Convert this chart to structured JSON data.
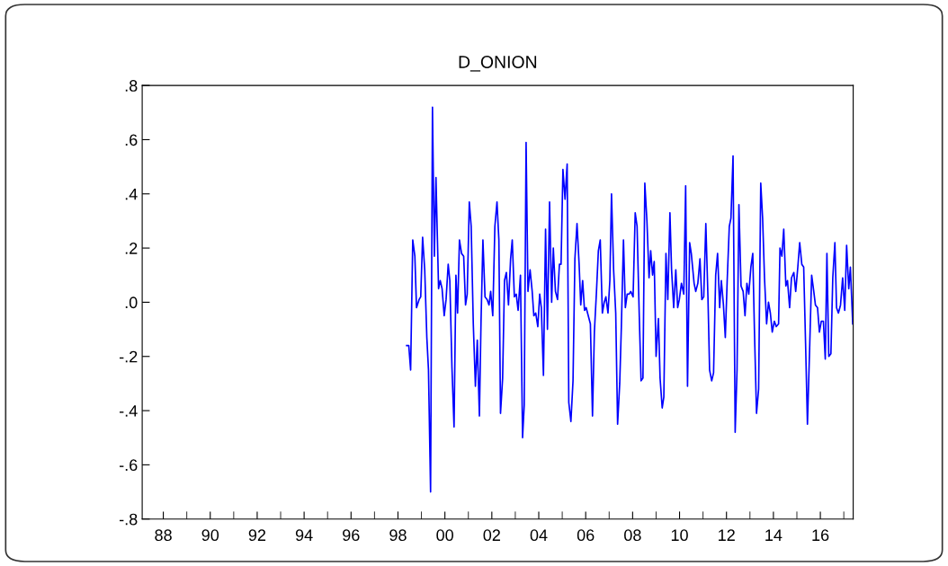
{
  "chart_data": {
    "type": "line",
    "title": "D_ONION",
    "x": [
      1998.37,
      1998.46,
      1998.54,
      1998.63,
      1998.72,
      1998.79,
      1998.9,
      1998.97,
      1999.05,
      1999.14,
      1999.23,
      1999.3,
      1999.39,
      1999.47,
      1999.55,
      1999.62,
      1999.73,
      1999.8,
      1999.88,
      1999.97,
      2000.05,
      2000.14,
      2000.21,
      2000.3,
      2000.39,
      2000.47,
      2000.54,
      2000.62,
      2000.71,
      2000.8,
      2000.88,
      2000.95,
      2001.04,
      2001.12,
      2001.21,
      2001.3,
      2001.38,
      2001.47,
      2001.54,
      2001.62,
      2001.71,
      2001.8,
      2001.88,
      2001.95,
      2002.04,
      2002.13,
      2002.22,
      2002.3,
      2002.37,
      2002.46,
      2002.54,
      2002.62,
      2002.71,
      2002.8,
      2002.87,
      2002.96,
      2003.04,
      2003.12,
      2003.22,
      2003.31,
      2003.38,
      2003.46,
      2003.54,
      2003.63,
      2003.72,
      2003.79,
      2003.87,
      2003.96,
      2004.04,
      2004.11,
      2004.2,
      2004.29,
      2004.37,
      2004.46,
      2004.55,
      2004.62,
      2004.71,
      2004.8,
      2004.88,
      2004.95,
      2005.03,
      2005.12,
      2005.21,
      2005.28,
      2005.37,
      2005.46,
      2005.54,
      2005.63,
      2005.72,
      2005.79,
      2005.87,
      2005.95,
      2006.02,
      2006.11,
      2006.2,
      2006.29,
      2006.37,
      2006.46,
      2006.54,
      2006.62,
      2006.71,
      2006.79,
      2006.86,
      2006.95,
      2007.03,
      2007.1,
      2007.19,
      2007.28,
      2007.36,
      2007.45,
      2007.52,
      2007.61,
      2007.69,
      2007.77,
      2007.85,
      2007.92,
      2008.02,
      2008.11,
      2008.19,
      2008.28,
      2008.36,
      2008.44,
      2008.52,
      2008.61,
      2008.7,
      2008.77,
      2008.85,
      2008.92,
      2009.0,
      2009.1,
      2009.17,
      2009.26,
      2009.33,
      2009.42,
      2009.5,
      2009.59,
      2009.66,
      2009.75,
      2009.84,
      2009.92,
      2009.99,
      2010.08,
      2010.18,
      2010.26,
      2010.34,
      2010.43,
      2010.5,
      2010.62,
      2010.69,
      2010.78,
      2010.87,
      2010.95,
      2011.03,
      2011.12,
      2011.21,
      2011.28,
      2011.37,
      2011.45,
      2011.54,
      2011.62,
      2011.71,
      2011.78,
      2011.87,
      2011.95,
      2012.03,
      2012.12,
      2012.19,
      2012.28,
      2012.37,
      2012.45,
      2012.53,
      2012.62,
      2012.71,
      2012.79,
      2012.87,
      2012.95,
      2013.04,
      2013.12,
      2013.19,
      2013.28,
      2013.37,
      2013.46,
      2013.54,
      2013.62,
      2013.71,
      2013.79,
      2013.87,
      2013.95,
      2014.04,
      2014.12,
      2014.22,
      2014.28,
      2014.36,
      2014.44,
      2014.53,
      2014.6,
      2014.69,
      2014.77,
      2014.87,
      2014.95,
      2015.04,
      2015.12,
      2015.21,
      2015.29,
      2015.37,
      2015.45,
      2015.55,
      2015.63,
      2015.72,
      2015.79,
      2015.88,
      2015.96,
      2016.04,
      2016.13,
      2016.21,
      2016.28,
      2016.36,
      2016.45,
      2016.53,
      2016.62,
      2016.69,
      2016.77,
      2016.86,
      2016.95,
      2017.04,
      2017.12,
      2017.21,
      2017.28,
      2017.38
    ],
    "series": [
      {
        "color": "#0000ff",
        "values": [
          -0.16,
          -0.16,
          -0.25,
          0.23,
          0.17,
          -0.02,
          0.01,
          0.02,
          0.24,
          0.12,
          -0.13,
          -0.25,
          -0.7,
          0.72,
          0.17,
          0.46,
          0.05,
          0.08,
          0.05,
          -0.05,
          0.01,
          0.14,
          0.08,
          -0.24,
          -0.46,
          0.1,
          -0.04,
          0.23,
          0.18,
          0.17,
          -0.01,
          0.03,
          0.37,
          0.28,
          -0.08,
          -0.31,
          -0.14,
          -0.42,
          -0.07,
          0.23,
          0.02,
          0.01,
          -0.01,
          0.04,
          -0.05,
          0.28,
          0.37,
          0.23,
          -0.41,
          -0.28,
          0.08,
          0.11,
          -0.01,
          0.16,
          0.23,
          0.02,
          0.03,
          -0.03,
          0.1,
          -0.5,
          -0.38,
          0.59,
          0.04,
          0.12,
          0.04,
          -0.05,
          -0.04,
          -0.09,
          0.03,
          -0.02,
          -0.27,
          0.27,
          -0.1,
          0.37,
          0.0,
          0.2,
          0.04,
          0.01,
          0.14,
          0.14,
          0.49,
          0.38,
          0.51,
          -0.37,
          -0.44,
          -0.29,
          0.16,
          0.29,
          0.14,
          -0.01,
          0.08,
          -0.03,
          -0.02,
          -0.05,
          -0.08,
          -0.42,
          -0.11,
          0.04,
          0.19,
          0.23,
          -0.04,
          0.0,
          0.02,
          -0.04,
          0.08,
          0.4,
          0.12,
          -0.04,
          -0.45,
          -0.3,
          -0.09,
          0.23,
          -0.02,
          0.03,
          0.03,
          0.04,
          0.02,
          0.33,
          0.28,
          -0.04,
          -0.29,
          -0.28,
          0.44,
          0.3,
          0.09,
          0.19,
          0.1,
          0.15,
          -0.2,
          -0.06,
          -0.28,
          -0.39,
          -0.35,
          0.18,
          0.01,
          0.33,
          0.12,
          -0.02,
          0.12,
          -0.02,
          0.01,
          0.07,
          0.03,
          0.43,
          -0.31,
          0.22,
          0.18,
          0.07,
          0.04,
          0.07,
          0.16,
          0.01,
          0.02,
          0.29,
          0.02,
          -0.25,
          -0.29,
          -0.26,
          0.1,
          0.18,
          -0.02,
          0.08,
          -0.01,
          -0.13,
          0.08,
          0.28,
          0.31,
          0.54,
          -0.48,
          -0.25,
          0.36,
          0.06,
          0.04,
          -0.05,
          0.07,
          0.03,
          0.13,
          0.18,
          -0.1,
          -0.41,
          -0.32,
          0.44,
          0.31,
          0.09,
          -0.08,
          0.0,
          -0.04,
          -0.11,
          -0.07,
          -0.09,
          -0.08,
          0.2,
          0.17,
          0.27,
          0.06,
          0.08,
          -0.02,
          0.09,
          0.11,
          0.04,
          0.13,
          0.22,
          0.14,
          0.13,
          -0.15,
          -0.45,
          -0.15,
          0.1,
          0.04,
          -0.01,
          -0.02,
          -0.11,
          -0.07,
          -0.07,
          -0.21,
          0.18,
          -0.2,
          -0.19,
          0.09,
          0.22,
          -0.02,
          -0.04,
          -0.01,
          0.09,
          -0.03,
          0.21,
          0.05,
          0.13,
          -0.08
        ]
      }
    ],
    "xlim": [
      1987.1,
      2017.4
    ],
    "xticks": [
      {
        "value": 1988,
        "label": "88"
      },
      {
        "value": 1989,
        "label": null
      },
      {
        "value": 1990,
        "label": "90"
      },
      {
        "value": 1991,
        "label": null
      },
      {
        "value": 1992,
        "label": "92"
      },
      {
        "value": 1993,
        "label": null
      },
      {
        "value": 1994,
        "label": "94"
      },
      {
        "value": 1995,
        "label": null
      },
      {
        "value": 1996,
        "label": "96"
      },
      {
        "value": 1997,
        "label": null
      },
      {
        "value": 1998,
        "label": "98"
      },
      {
        "value": 1999,
        "label": null
      },
      {
        "value": 2000,
        "label": "00"
      },
      {
        "value": 2001,
        "label": null
      },
      {
        "value": 2002,
        "label": "02"
      },
      {
        "value": 2003,
        "label": null
      },
      {
        "value": 2004,
        "label": "04"
      },
      {
        "value": 2005,
        "label": null
      },
      {
        "value": 2006,
        "label": "06"
      },
      {
        "value": 2007,
        "label": null
      },
      {
        "value": 2008,
        "label": "08"
      },
      {
        "value": 2009,
        "label": null
      },
      {
        "value": 2010,
        "label": "10"
      },
      {
        "value": 2011,
        "label": null
      },
      {
        "value": 2012,
        "label": "12"
      },
      {
        "value": 2013,
        "label": null
      },
      {
        "value": 2014,
        "label": "14"
      },
      {
        "value": 2015,
        "label": null
      },
      {
        "value": 2016,
        "label": "16"
      },
      {
        "value": 2017,
        "label": null
      }
    ],
    "ylim": [
      -0.8,
      0.8
    ],
    "yticks": [
      {
        "value": -0.8,
        "label": "-.8"
      },
      {
        "value": -0.6,
        "label": "-.6"
      },
      {
        "value": -0.4,
        "label": "-.4"
      },
      {
        "value": -0.2,
        "label": "-.2"
      },
      {
        "value": 0.0,
        "label": ".0"
      },
      {
        "value": 0.2,
        "label": ".2"
      },
      {
        "value": 0.4,
        "label": ".4"
      },
      {
        "value": 0.6,
        "label": ".6"
      },
      {
        "value": 0.8,
        "label": ".8"
      }
    ],
    "grid": false,
    "legend": false,
    "marker": "none",
    "line_style": "solid"
  }
}
